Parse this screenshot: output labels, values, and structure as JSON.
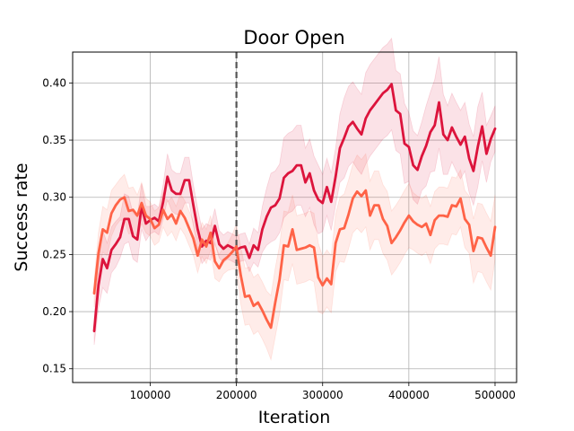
{
  "chart_data": {
    "type": "line",
    "title": "Door Open",
    "xlabel": "Iteration",
    "ylabel": "Success rate",
    "xlim": [
      10000,
      525000
    ],
    "ylim": [
      0.138,
      0.427
    ],
    "x_ticks": [
      100000,
      200000,
      300000,
      400000,
      500000
    ],
    "x_tick_labels": [
      "100000",
      "200000",
      "300000",
      "400000",
      "500000"
    ],
    "y_ticks": [
      0.15,
      0.2,
      0.25,
      0.3,
      0.35,
      0.4
    ],
    "y_tick_labels": [
      "0.15",
      "0.20",
      "0.25",
      "0.30",
      "0.35",
      "0.40"
    ],
    "grid": true,
    "vline": {
      "x": 200000,
      "style": "dashed",
      "color": "#555555"
    },
    "series": [
      {
        "color": "#dc143c",
        "band_color": "#dc143c",
        "points": [
          [
            35000,
            0.183
          ],
          [
            40000,
            0.223
          ],
          [
            45000,
            0.246
          ],
          [
            50000,
            0.238
          ],
          [
            55000,
            0.254
          ],
          [
            60000,
            0.259
          ],
          [
            65000,
            0.265
          ],
          [
            70000,
            0.281
          ],
          [
            75000,
            0.281
          ],
          [
            80000,
            0.266
          ],
          [
            85000,
            0.263
          ],
          [
            90000,
            0.292
          ],
          [
            95000,
            0.277
          ],
          [
            100000,
            0.28
          ],
          [
            105000,
            0.282
          ],
          [
            110000,
            0.279
          ],
          [
            115000,
            0.296
          ],
          [
            120000,
            0.318
          ],
          [
            125000,
            0.306
          ],
          [
            130000,
            0.303
          ],
          [
            135000,
            0.303
          ],
          [
            140000,
            0.315
          ],
          [
            145000,
            0.315
          ],
          [
            150000,
            0.293
          ],
          [
            155000,
            0.272
          ],
          [
            160000,
            0.257
          ],
          [
            165000,
            0.262
          ],
          [
            170000,
            0.26
          ],
          [
            175000,
            0.275
          ],
          [
            180000,
            0.259
          ],
          [
            185000,
            0.255
          ],
          [
            190000,
            0.258
          ],
          [
            195000,
            0.256
          ],
          [
            200000,
            0.254
          ],
          [
            205000,
            0.256
          ],
          [
            210000,
            0.257
          ],
          [
            215000,
            0.247
          ],
          [
            220000,
            0.258
          ],
          [
            225000,
            0.254
          ],
          [
            230000,
            0.272
          ],
          [
            235000,
            0.283
          ],
          [
            240000,
            0.291
          ],
          [
            245000,
            0.293
          ],
          [
            250000,
            0.299
          ],
          [
            255000,
            0.317
          ],
          [
            260000,
            0.321
          ],
          [
            265000,
            0.323
          ],
          [
            270000,
            0.328
          ],
          [
            275000,
            0.328
          ],
          [
            280000,
            0.313
          ],
          [
            285000,
            0.321
          ],
          [
            290000,
            0.306
          ],
          [
            295000,
            0.298
          ],
          [
            300000,
            0.295
          ],
          [
            305000,
            0.309
          ],
          [
            310000,
            0.296
          ],
          [
            315000,
            0.318
          ],
          [
            320000,
            0.343
          ],
          [
            325000,
            0.352
          ],
          [
            330000,
            0.362
          ],
          [
            335000,
            0.366
          ],
          [
            340000,
            0.36
          ],
          [
            345000,
            0.355
          ],
          [
            350000,
            0.369
          ],
          [
            355000,
            0.376
          ],
          [
            360000,
            0.381
          ],
          [
            365000,
            0.386
          ],
          [
            370000,
            0.391
          ],
          [
            375000,
            0.394
          ],
          [
            380000,
            0.399
          ],
          [
            385000,
            0.376
          ],
          [
            390000,
            0.373
          ],
          [
            395000,
            0.347
          ],
          [
            400000,
            0.344
          ],
          [
            405000,
            0.328
          ],
          [
            410000,
            0.324
          ],
          [
            415000,
            0.336
          ],
          [
            420000,
            0.345
          ],
          [
            425000,
            0.357
          ],
          [
            430000,
            0.363
          ],
          [
            435000,
            0.383
          ],
          [
            440000,
            0.355
          ],
          [
            445000,
            0.35
          ],
          [
            450000,
            0.361
          ],
          [
            455000,
            0.353
          ],
          [
            460000,
            0.346
          ],
          [
            465000,
            0.353
          ],
          [
            470000,
            0.334
          ],
          [
            475000,
            0.323
          ],
          [
            480000,
            0.344
          ],
          [
            485000,
            0.362
          ],
          [
            490000,
            0.338
          ],
          [
            495000,
            0.351
          ],
          [
            500000,
            0.36
          ]
        ],
        "band": [
          0.012,
          0.02,
          0.025,
          0.022,
          0.02,
          0.02,
          0.018,
          0.022,
          0.02,
          0.02,
          0.02,
          0.02,
          0.015,
          0.012,
          0.012,
          0.012,
          0.015,
          0.02,
          0.018,
          0.018,
          0.018,
          0.02,
          0.02,
          0.018,
          0.018,
          0.015,
          0.015,
          0.015,
          0.015,
          0.012,
          0.012,
          0.012,
          0.012,
          0.012,
          0.012,
          0.012,
          0.012,
          0.015,
          0.015,
          0.02,
          0.025,
          0.03,
          0.03,
          0.03,
          0.035,
          0.035,
          0.035,
          0.035,
          0.035,
          0.03,
          0.03,
          0.03,
          0.03,
          0.025,
          0.025,
          0.025,
          0.025,
          0.03,
          0.035,
          0.035,
          0.035,
          0.035,
          0.035,
          0.04,
          0.04,
          0.04,
          0.04,
          0.04,
          0.04,
          0.04,
          0.035,
          0.035,
          0.035,
          0.03,
          0.03,
          0.03,
          0.03,
          0.035,
          0.035,
          0.04,
          0.04,
          0.035,
          0.03,
          0.03,
          0.03,
          0.03,
          0.03,
          0.03,
          0.03,
          0.035,
          0.03,
          0.025,
          0.02,
          0.02
        ]
      },
      {
        "color": "#ff6347",
        "band_color": "#ff6347",
        "points": [
          [
            35000,
            0.216
          ],
          [
            40000,
            0.251
          ],
          [
            45000,
            0.272
          ],
          [
            50000,
            0.269
          ],
          [
            55000,
            0.286
          ],
          [
            60000,
            0.293
          ],
          [
            65000,
            0.298
          ],
          [
            70000,
            0.3
          ],
          [
            75000,
            0.288
          ],
          [
            80000,
            0.289
          ],
          [
            85000,
            0.284
          ],
          [
            90000,
            0.295
          ],
          [
            95000,
            0.284
          ],
          [
            100000,
            0.281
          ],
          [
            105000,
            0.273
          ],
          [
            110000,
            0.276
          ],
          [
            115000,
            0.289
          ],
          [
            120000,
            0.281
          ],
          [
            125000,
            0.285
          ],
          [
            130000,
            0.277
          ],
          [
            135000,
            0.288
          ],
          [
            140000,
            0.282
          ],
          [
            145000,
            0.273
          ],
          [
            150000,
            0.264
          ],
          [
            155000,
            0.249
          ],
          [
            160000,
            0.263
          ],
          [
            165000,
            0.257
          ],
          [
            170000,
            0.269
          ],
          [
            175000,
            0.244
          ],
          [
            180000,
            0.238
          ],
          [
            185000,
            0.245
          ],
          [
            190000,
            0.248
          ],
          [
            195000,
            0.252
          ],
          [
            200000,
            0.257
          ],
          [
            205000,
            0.232
          ],
          [
            210000,
            0.213
          ],
          [
            215000,
            0.214
          ],
          [
            220000,
            0.205
          ],
          [
            225000,
            0.208
          ],
          [
            230000,
            0.201
          ],
          [
            235000,
            0.193
          ],
          [
            240000,
            0.186
          ],
          [
            245000,
            0.208
          ],
          [
            250000,
            0.228
          ],
          [
            255000,
            0.258
          ],
          [
            260000,
            0.257
          ],
          [
            265000,
            0.272
          ],
          [
            270000,
            0.254
          ],
          [
            275000,
            0.255
          ],
          [
            280000,
            0.256
          ],
          [
            285000,
            0.258
          ],
          [
            290000,
            0.256
          ],
          [
            295000,
            0.23
          ],
          [
            300000,
            0.223
          ],
          [
            305000,
            0.229
          ],
          [
            310000,
            0.224
          ],
          [
            315000,
            0.26
          ],
          [
            320000,
            0.272
          ],
          [
            325000,
            0.273
          ],
          [
            330000,
            0.285
          ],
          [
            335000,
            0.299
          ],
          [
            340000,
            0.305
          ],
          [
            345000,
            0.301
          ],
          [
            350000,
            0.306
          ],
          [
            355000,
            0.284
          ],
          [
            360000,
            0.293
          ],
          [
            365000,
            0.293
          ],
          [
            370000,
            0.281
          ],
          [
            375000,
            0.275
          ],
          [
            380000,
            0.26
          ],
          [
            385000,
            0.265
          ],
          [
            390000,
            0.271
          ],
          [
            395000,
            0.278
          ],
          [
            400000,
            0.284
          ],
          [
            405000,
            0.279
          ],
          [
            410000,
            0.276
          ],
          [
            415000,
            0.274
          ],
          [
            420000,
            0.277
          ],
          [
            425000,
            0.267
          ],
          [
            430000,
            0.28
          ],
          [
            435000,
            0.284
          ],
          [
            440000,
            0.284
          ],
          [
            445000,
            0.283
          ],
          [
            450000,
            0.293
          ],
          [
            455000,
            0.292
          ],
          [
            460000,
            0.299
          ],
          [
            465000,
            0.281
          ],
          [
            470000,
            0.276
          ],
          [
            475000,
            0.253
          ],
          [
            480000,
            0.265
          ],
          [
            485000,
            0.264
          ],
          [
            490000,
            0.256
          ],
          [
            495000,
            0.249
          ],
          [
            500000,
            0.274
          ]
        ],
        "band": [
          0.012,
          0.018,
          0.02,
          0.02,
          0.02,
          0.018,
          0.018,
          0.02,
          0.02,
          0.02,
          0.018,
          0.018,
          0.015,
          0.015,
          0.015,
          0.015,
          0.015,
          0.015,
          0.015,
          0.015,
          0.015,
          0.015,
          0.015,
          0.015,
          0.015,
          0.015,
          0.015,
          0.015,
          0.015,
          0.012,
          0.012,
          0.012,
          0.015,
          0.02,
          0.025,
          0.025,
          0.025,
          0.025,
          0.025,
          0.025,
          0.025,
          0.028,
          0.03,
          0.03,
          0.03,
          0.03,
          0.03,
          0.03,
          0.03,
          0.03,
          0.03,
          0.03,
          0.03,
          0.025,
          0.025,
          0.025,
          0.025,
          0.028,
          0.03,
          0.03,
          0.03,
          0.032,
          0.032,
          0.032,
          0.03,
          0.03,
          0.03,
          0.03,
          0.03,
          0.028,
          0.028,
          0.028,
          0.028,
          0.028,
          0.025,
          0.025,
          0.025,
          0.025,
          0.025,
          0.025,
          0.025,
          0.025,
          0.025,
          0.025,
          0.025,
          0.025,
          0.025,
          0.025,
          0.028,
          0.03,
          0.03,
          0.03,
          0.03,
          0.028
        ]
      }
    ]
  }
}
